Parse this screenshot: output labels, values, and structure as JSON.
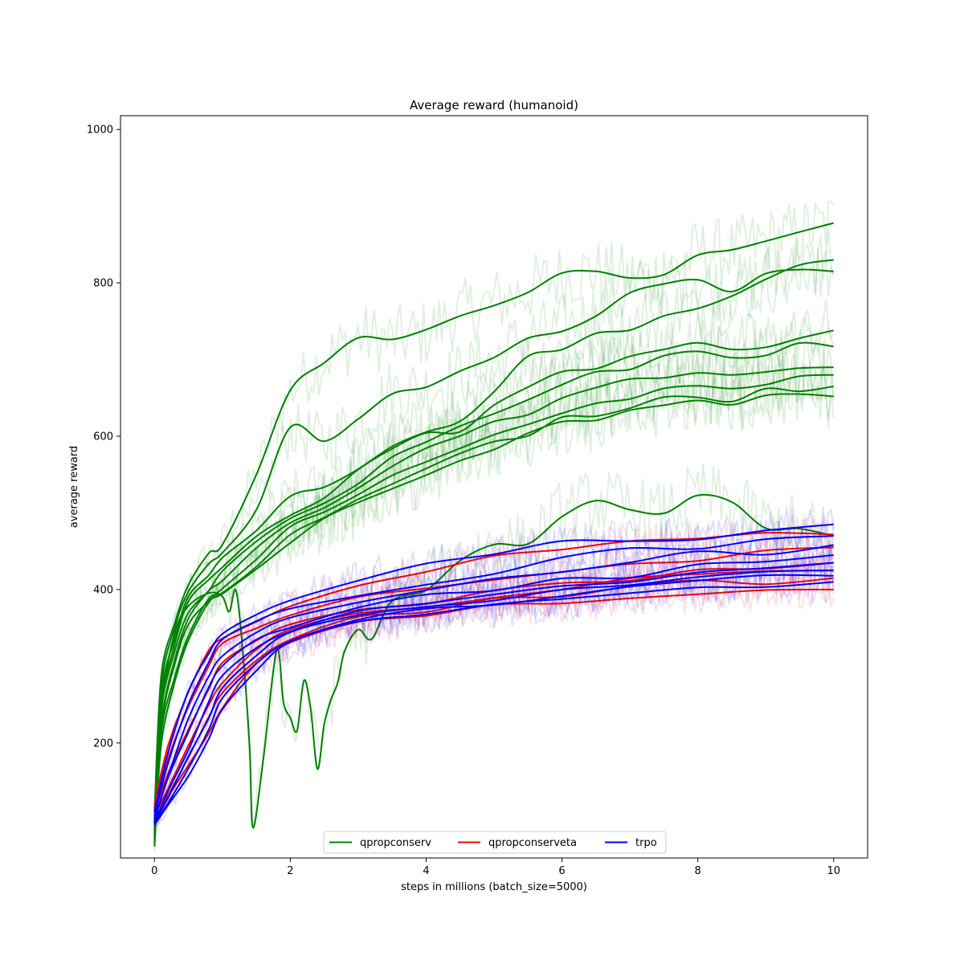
{
  "chart_data": {
    "type": "line",
    "title": "Average reward (humanoid)",
    "xlabel": "steps in millions (batch_size=5000)",
    "ylabel": "average reward",
    "xlim": [
      -0.5,
      10.5
    ],
    "ylim": [
      50,
      1018
    ],
    "xticks": [
      0,
      2,
      4,
      6,
      8,
      10
    ],
    "yticks": [
      200,
      400,
      600,
      800,
      1000
    ],
    "grid": false,
    "legend_position": "lower center",
    "legend": [
      {
        "name": "qpropconserv",
        "color": "#008000"
      },
      {
        "name": "qpropconserveta",
        "color": "#ff0000"
      },
      {
        "name": "trpo",
        "color": "#0000ff"
      }
    ],
    "series": [
      {
        "group": "qpropconserv",
        "color": "#008000",
        "x": [
          0,
          0.1,
          0.3,
          0.5,
          0.8,
          1.0,
          1.5,
          2.0,
          2.5,
          3.0,
          3.5,
          4.0,
          4.5,
          5.0,
          5.5,
          6.0,
          6.5,
          7.0,
          7.5,
          8.0,
          8.5,
          9.0,
          9.5,
          10.0
        ],
        "values": [
          110,
          290,
          360,
          410,
          450,
          460,
          550,
          660,
          700,
          730,
          725,
          735,
          760,
          775,
          790,
          810,
          815,
          805,
          810,
          840,
          840,
          855,
          865,
          878
        ]
      },
      {
        "group": "qpropconserv",
        "color": "#008000",
        "x": [
          0,
          0.1,
          0.3,
          0.5,
          0.8,
          1.0,
          1.5,
          2.0,
          2.5,
          3.0,
          3.5,
          4.0,
          4.5,
          5.0,
          5.5,
          6.0,
          6.5,
          7.0,
          7.5,
          8.0,
          8.5,
          9.0,
          9.5,
          10.0
        ],
        "values": [
          100,
          270,
          350,
          400,
          430,
          450,
          500,
          610,
          590,
          620,
          660,
          660,
          680,
          700,
          730,
          740,
          760,
          790,
          800,
          800,
          790,
          810,
          820,
          815
        ]
      },
      {
        "group": "qpropconserv",
        "color": "#008000",
        "x": [
          0,
          0.1,
          0.3,
          0.5,
          0.8,
          1.0,
          1.5,
          2.0,
          2.5,
          3.0,
          3.5,
          4.0,
          4.5,
          5.0,
          5.5,
          6.0,
          6.5,
          7.0,
          7.5,
          8.0,
          8.5,
          9.0,
          9.5,
          10.0
        ],
        "values": [
          95,
          260,
          340,
          390,
          420,
          440,
          480,
          520,
          530,
          560,
          590,
          610,
          620,
          660,
          700,
          710,
          730,
          740,
          760,
          770,
          780,
          800,
          820,
          830
        ]
      },
      {
        "group": "qpropconserv",
        "color": "#008000",
        "x": [
          0,
          0.1,
          0.3,
          0.5,
          0.8,
          1.0,
          1.5,
          2.0,
          2.5,
          3.0,
          3.5,
          4.0,
          4.5,
          5.0,
          5.5,
          6.0,
          6.5,
          7.0,
          7.5,
          8.0,
          8.5,
          9.0,
          9.5,
          10.0
        ],
        "values": [
          90,
          250,
          330,
          380,
          410,
          430,
          470,
          500,
          520,
          560,
          580,
          600,
          610,
          640,
          660,
          680,
          690,
          700,
          710,
          720,
          715,
          720,
          730,
          738
        ]
      },
      {
        "group": "qpropconserv",
        "color": "#008000",
        "x": [
          0,
          0.1,
          0.3,
          0.5,
          0.8,
          1.0,
          1.5,
          2.0,
          2.5,
          3.0,
          3.5,
          4.0,
          4.5,
          5.0,
          5.5,
          6.0,
          6.5,
          7.0,
          7.5,
          8.0,
          8.5,
          9.0,
          9.5,
          10.0
        ],
        "values": [
          85,
          240,
          320,
          370,
          400,
          420,
          460,
          490,
          510,
          540,
          570,
          590,
          610,
          630,
          650,
          670,
          680,
          690,
          700,
          710,
          700,
          710,
          720,
          717
        ]
      },
      {
        "group": "qpropconserv",
        "color": "#008000",
        "x": [
          0,
          0.1,
          0.3,
          0.5,
          0.8,
          1.0,
          1.5,
          2.0,
          2.5,
          3.0,
          3.5,
          4.0,
          4.5,
          5.0,
          5.5,
          6.0,
          6.5,
          7.0,
          7.5,
          8.0,
          8.5,
          9.0,
          9.5,
          10.0
        ],
        "values": [
          80,
          230,
          310,
          360,
          395,
          410,
          450,
          490,
          505,
          530,
          560,
          580,
          600,
          615,
          630,
          645,
          660,
          670,
          680,
          685,
          680,
          685,
          690,
          690
        ]
      },
      {
        "group": "qpropconserv",
        "color": "#008000",
        "x": [
          0,
          0.1,
          0.3,
          0.5,
          0.8,
          1.0,
          1.5,
          2.0,
          2.5,
          3.0,
          3.5,
          4.0,
          4.5,
          5.0,
          5.5,
          6.0,
          6.5,
          7.0,
          7.5,
          8.0,
          8.5,
          9.0,
          9.5,
          10.0
        ],
        "values": [
          75,
          220,
          300,
          350,
          390,
          405,
          440,
          480,
          500,
          520,
          545,
          565,
          585,
          600,
          615,
          630,
          640,
          650,
          660,
          665,
          660,
          670,
          675,
          680
        ]
      },
      {
        "group": "qpropconserv",
        "color": "#008000",
        "x": [
          0,
          0.1,
          0.3,
          0.5,
          0.8,
          1.0,
          1.5,
          2.0,
          2.5,
          3.0,
          3.5,
          4.0,
          4.5,
          5.0,
          5.5,
          6.0,
          6.5,
          7.0,
          7.5,
          8.0,
          8.5,
          9.0,
          9.5,
          10.0
        ],
        "values": [
          70,
          210,
          290,
          340,
          385,
          400,
          430,
          470,
          495,
          515,
          535,
          555,
          575,
          590,
          605,
          620,
          630,
          640,
          648,
          655,
          650,
          660,
          662,
          665
        ]
      },
      {
        "group": "qpropconserv",
        "color": "#008000",
        "x": [
          0,
          0.1,
          0.3,
          0.5,
          0.8,
          1.0,
          1.5,
          2.0,
          2.5,
          3.0,
          3.5,
          4.0,
          4.5,
          5.0,
          5.5,
          6.0,
          6.5,
          7.0,
          7.5,
          8.0,
          8.5,
          9.0,
          9.5,
          10.0
        ],
        "values": [
          65,
          200,
          280,
          335,
          380,
          395,
          425,
          465,
          490,
          510,
          530,
          548,
          568,
          585,
          600,
          615,
          625,
          635,
          642,
          648,
          645,
          652,
          656,
          652
        ]
      },
      {
        "group": "qpropconserv",
        "color": "#008000",
        "x": [
          0,
          0.1,
          0.3,
          0.5,
          0.8,
          1.0,
          1.1,
          1.2,
          1.3,
          1.4,
          1.45,
          1.6,
          1.8,
          1.9,
          2.0,
          2.1,
          2.2,
          2.3,
          2.4,
          2.5,
          2.6,
          2.7,
          2.8,
          3.0,
          3.2,
          3.5,
          4.0,
          4.5,
          5.0,
          5.5,
          6.0,
          6.5,
          7.0,
          7.5,
          8.0,
          8.5,
          9.0,
          9.5,
          10.0
        ],
        "values": [
          95,
          250,
          340,
          380,
          395,
          390,
          370,
          400,
          320,
          200,
          90,
          180,
          320,
          250,
          230,
          215,
          280,
          250,
          170,
          220,
          260,
          280,
          320,
          350,
          340,
          390,
          400,
          440,
          460,
          455,
          500,
          515,
          505,
          495,
          525,
          510,
          485,
          480,
          470
        ]
      },
      {
        "group": "qpropconserveta",
        "color": "#ff0000",
        "x": [
          0,
          0.2,
          0.5,
          0.8,
          1.0,
          1.5,
          2.0,
          3.0,
          4.0,
          5.0,
          6.0,
          7.0,
          8.0,
          9.0,
          10.0
        ],
        "values": [
          120,
          200,
          270,
          320,
          340,
          360,
          380,
          405,
          420,
          440,
          455,
          460,
          465,
          470,
          472
        ]
      },
      {
        "group": "qpropconserveta",
        "color": "#ff0000",
        "x": [
          0,
          0.2,
          0.5,
          0.8,
          1.0,
          1.5,
          2.0,
          3.0,
          4.0,
          5.0,
          6.0,
          7.0,
          8.0,
          9.0,
          10.0
        ],
        "values": [
          115,
          180,
          250,
          300,
          325,
          345,
          365,
          390,
          400,
          410,
          420,
          430,
          440,
          450,
          455
        ]
      },
      {
        "group": "qpropconserveta",
        "color": "#ff0000",
        "x": [
          0,
          0.2,
          0.5,
          0.8,
          1.0,
          1.5,
          2.0,
          3.0,
          4.0,
          5.0,
          6.0,
          7.0,
          8.0,
          9.0,
          10.0
        ],
        "values": [
          110,
          160,
          220,
          270,
          300,
          330,
          350,
          375,
          385,
          395,
          405,
          415,
          425,
          430,
          435
        ]
      },
      {
        "group": "qpropconserveta",
        "color": "#ff0000",
        "x": [
          0,
          0.2,
          0.5,
          0.8,
          1.0,
          1.5,
          2.0,
          3.0,
          4.0,
          5.0,
          6.0,
          7.0,
          8.0,
          9.0,
          10.0
        ],
        "values": [
          105,
          145,
          200,
          245,
          280,
          320,
          345,
          370,
          380,
          390,
          400,
          410,
          418,
          420,
          425
        ]
      },
      {
        "group": "qpropconserveta",
        "color": "#ff0000",
        "x": [
          0,
          0.2,
          0.5,
          0.8,
          1.0,
          1.5,
          2.0,
          3.0,
          4.0,
          5.0,
          6.0,
          7.0,
          8.0,
          9.0,
          10.0
        ],
        "values": [
          100,
          135,
          185,
          230,
          265,
          310,
          335,
          360,
          375,
          385,
          395,
          400,
          410,
          412,
          415
        ]
      },
      {
        "group": "qpropconserveta",
        "color": "#ff0000",
        "x": [
          0,
          0.2,
          0.5,
          0.8,
          1.0,
          1.5,
          2.0,
          3.0,
          4.0,
          5.0,
          6.0,
          7.0,
          8.0,
          9.0,
          10.0
        ],
        "values": [
          100,
          125,
          170,
          215,
          250,
          300,
          330,
          355,
          370,
          378,
          385,
          390,
          395,
          400,
          400
        ]
      },
      {
        "group": "trpo",
        "color": "#0000ff",
        "x": [
          0,
          0.2,
          0.5,
          0.8,
          1.0,
          1.5,
          2.0,
          3.0,
          4.0,
          5.0,
          6.0,
          7.0,
          8.0,
          9.0,
          10.0
        ],
        "values": [
          110,
          190,
          270,
          320,
          340,
          365,
          385,
          410,
          430,
          450,
          460,
          465,
          470,
          478,
          485
        ]
      },
      {
        "group": "trpo",
        "color": "#0000ff",
        "x": [
          0,
          0.2,
          0.5,
          0.8,
          1.0,
          1.5,
          2.0,
          3.0,
          4.0,
          5.0,
          6.0,
          7.0,
          8.0,
          9.0,
          10.0
        ],
        "values": [
          105,
          175,
          255,
          305,
          330,
          355,
          375,
          395,
          410,
          425,
          440,
          450,
          455,
          462,
          470
        ]
      },
      {
        "group": "trpo",
        "color": "#0000ff",
        "x": [
          0,
          0.2,
          0.5,
          0.8,
          1.0,
          1.5,
          2.0,
          3.0,
          4.0,
          5.0,
          6.0,
          7.0,
          8.0,
          9.0,
          10.0
        ],
        "values": [
          100,
          160,
          235,
          290,
          318,
          345,
          365,
          385,
          398,
          410,
          425,
          435,
          445,
          450,
          458
        ]
      },
      {
        "group": "trpo",
        "color": "#0000ff",
        "x": [
          0,
          0.2,
          0.5,
          0.8,
          1.0,
          1.5,
          2.0,
          3.0,
          4.0,
          5.0,
          6.0,
          7.0,
          8.0,
          9.0,
          10.0
        ],
        "values": [
          98,
          150,
          215,
          270,
          300,
          335,
          355,
          378,
          390,
          400,
          410,
          420,
          430,
          438,
          445
        ]
      },
      {
        "group": "trpo",
        "color": "#0000ff",
        "x": [
          0,
          0.2,
          0.5,
          0.8,
          1.0,
          1.5,
          2.0,
          3.0,
          4.0,
          5.0,
          6.0,
          7.0,
          8.0,
          9.0,
          10.0
        ],
        "values": [
          96,
          140,
          195,
          250,
          285,
          325,
          348,
          372,
          385,
          395,
          402,
          410,
          420,
          428,
          435
        ]
      },
      {
        "group": "trpo",
        "color": "#0000ff",
        "x": [
          0,
          0.2,
          0.5,
          0.8,
          1.0,
          1.5,
          2.0,
          3.0,
          4.0,
          5.0,
          6.0,
          7.0,
          8.0,
          9.0,
          10.0
        ],
        "values": [
          95,
          130,
          180,
          235,
          270,
          315,
          340,
          365,
          378,
          388,
          395,
          405,
          412,
          420,
          425
        ]
      },
      {
        "group": "trpo",
        "color": "#0000ff",
        "x": [
          0,
          0.2,
          0.5,
          0.8,
          1.0,
          1.5,
          2.0,
          3.0,
          4.0,
          5.0,
          6.0,
          7.0,
          8.0,
          9.0,
          10.0
        ],
        "values": [
          94,
          122,
          168,
          220,
          258,
          305,
          333,
          360,
          372,
          382,
          390,
          400,
          408,
          415,
          418
        ]
      },
      {
        "group": "trpo",
        "color": "#0000ff",
        "x": [
          0,
          0.2,
          0.5,
          0.8,
          1.0,
          1.5,
          2.0,
          3.0,
          4.0,
          5.0,
          6.0,
          7.0,
          8.0,
          9.0,
          10.0
        ],
        "values": [
          93,
          115,
          158,
          208,
          245,
          295,
          328,
          355,
          368,
          378,
          386,
          395,
          402,
          408,
          410
        ]
      }
    ]
  }
}
